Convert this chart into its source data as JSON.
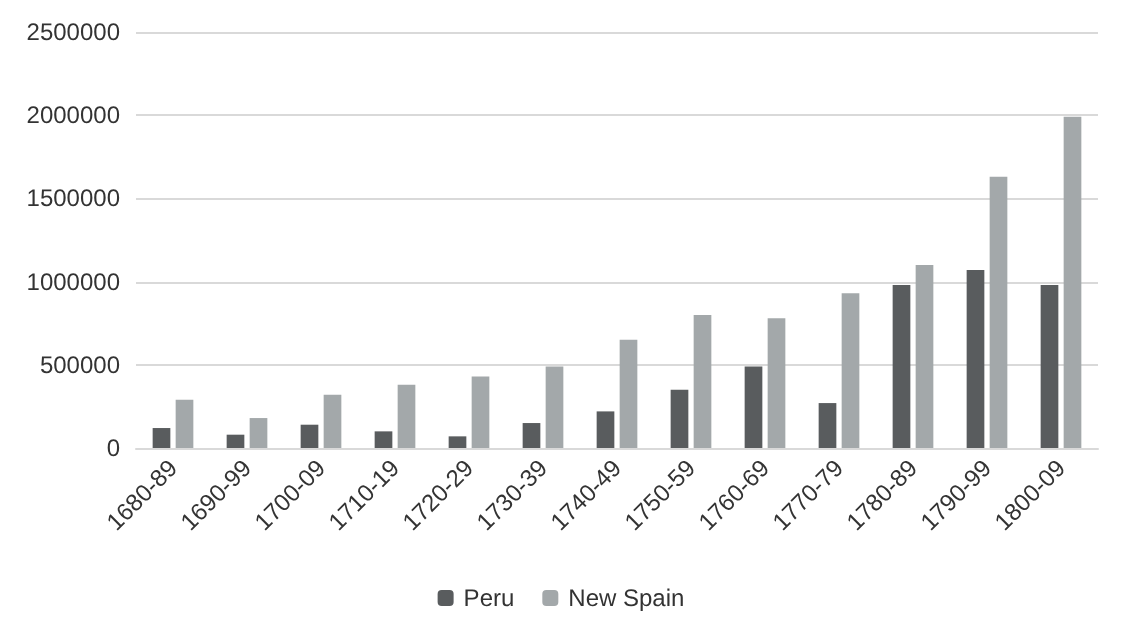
{
  "chart_data": {
    "type": "bar",
    "categories": [
      "1680-89",
      "1690-99",
      "1700-09",
      "1710-19",
      "1720-29",
      "1730-39",
      "1740-49",
      "1750-59",
      "1760-69",
      "1770-79",
      "1780-89",
      "1790-99",
      "1800-09"
    ],
    "series": [
      {
        "name": "Peru",
        "color": "#595c5e",
        "values": [
          120000,
          80000,
          140000,
          100000,
          70000,
          150000,
          220000,
          350000,
          490000,
          270000,
          980000,
          1070000,
          980000
        ]
      },
      {
        "name": "New Spain",
        "color": "#a3a8aa",
        "values": [
          290000,
          180000,
          320000,
          380000,
          430000,
          490000,
          650000,
          800000,
          780000,
          930000,
          1100000,
          1630000,
          1990000
        ]
      }
    ],
    "ylim": [
      0,
      2500000
    ],
    "yticks": [
      0,
      500000,
      1000000,
      1500000,
      2000000,
      2500000
    ],
    "grid": "y",
    "legend": "bottom"
  }
}
